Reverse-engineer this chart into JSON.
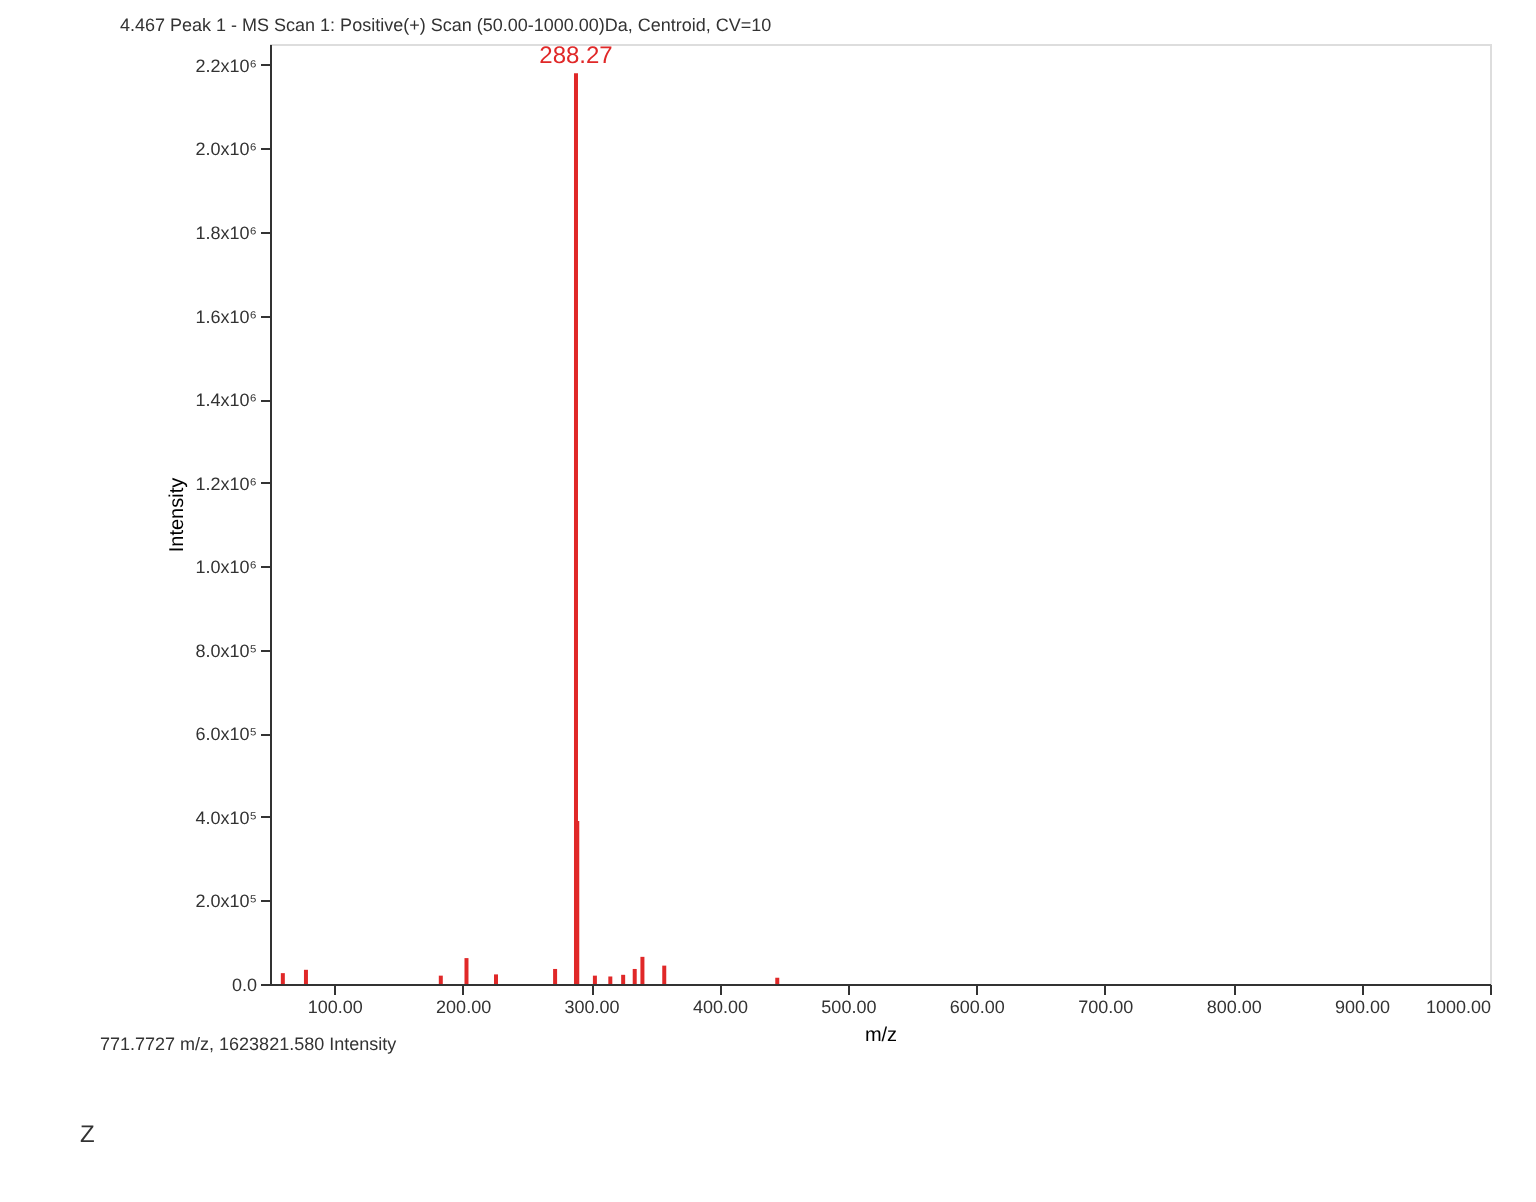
{
  "chart_data": {
    "type": "bar",
    "title": "4.467 Peak 1 - MS Scan 1: Positive(+) Scan (50.00-1000.00)Da, Centroid, CV=10",
    "xlabel": "m/z",
    "ylabel": "Intensity",
    "x": [
      60,
      78,
      183,
      203,
      226,
      272,
      288.27,
      289.27,
      303,
      315,
      325,
      334,
      340,
      357,
      445
    ],
    "series": [
      {
        "color": "#e02828",
        "values": [
          26000,
          34000,
          20000,
          62000,
          23000,
          36000,
          2180000,
          390000,
          20000,
          18000,
          22000,
          36000,
          65000,
          44000,
          15000
        ]
      }
    ],
    "xlim": [
      50,
      1000
    ],
    "ylim": [
      0,
      2250000
    ],
    "xticks": [
      {
        "value": 100,
        "label": "100.00"
      },
      {
        "value": 200,
        "label": "200.00"
      },
      {
        "value": 300,
        "label": "300.00"
      },
      {
        "value": 400,
        "label": "400.00"
      },
      {
        "value": 500,
        "label": "500.00"
      },
      {
        "value": 600,
        "label": "600.00"
      },
      {
        "value": 700,
        "label": "700.00"
      },
      {
        "value": 800,
        "label": "800.00"
      },
      {
        "value": 900,
        "label": "900.00"
      },
      {
        "value": 1000,
        "label": "1000.00"
      }
    ],
    "yticks": [
      {
        "value": 0,
        "label": "0.0"
      },
      {
        "value": 200000,
        "label": "2.0x10⁵"
      },
      {
        "value": 400000,
        "label": "4.0x10⁵"
      },
      {
        "value": 600000,
        "label": "6.0x10⁵"
      },
      {
        "value": 800000,
        "label": "8.0x10⁵"
      },
      {
        "value": 1000000,
        "label": "1.0x10⁶"
      },
      {
        "value": 1200000,
        "label": "1.2x10⁶"
      },
      {
        "value": 1400000,
        "label": "1.4x10⁶"
      },
      {
        "value": 1600000,
        "label": "1.6x10⁶"
      },
      {
        "value": 1800000,
        "label": "1.8x10⁶"
      },
      {
        "value": 2000000,
        "label": "2.0x10⁶"
      },
      {
        "value": 2200000,
        "label": "2.2x10⁶"
      }
    ],
    "annotations": [
      {
        "text": "288.27",
        "x": 288.27,
        "y": 2180000
      },
      "771.7727 m/z, 1623821.580 Intensity",
      "Z"
    ],
    "grid": false
  }
}
